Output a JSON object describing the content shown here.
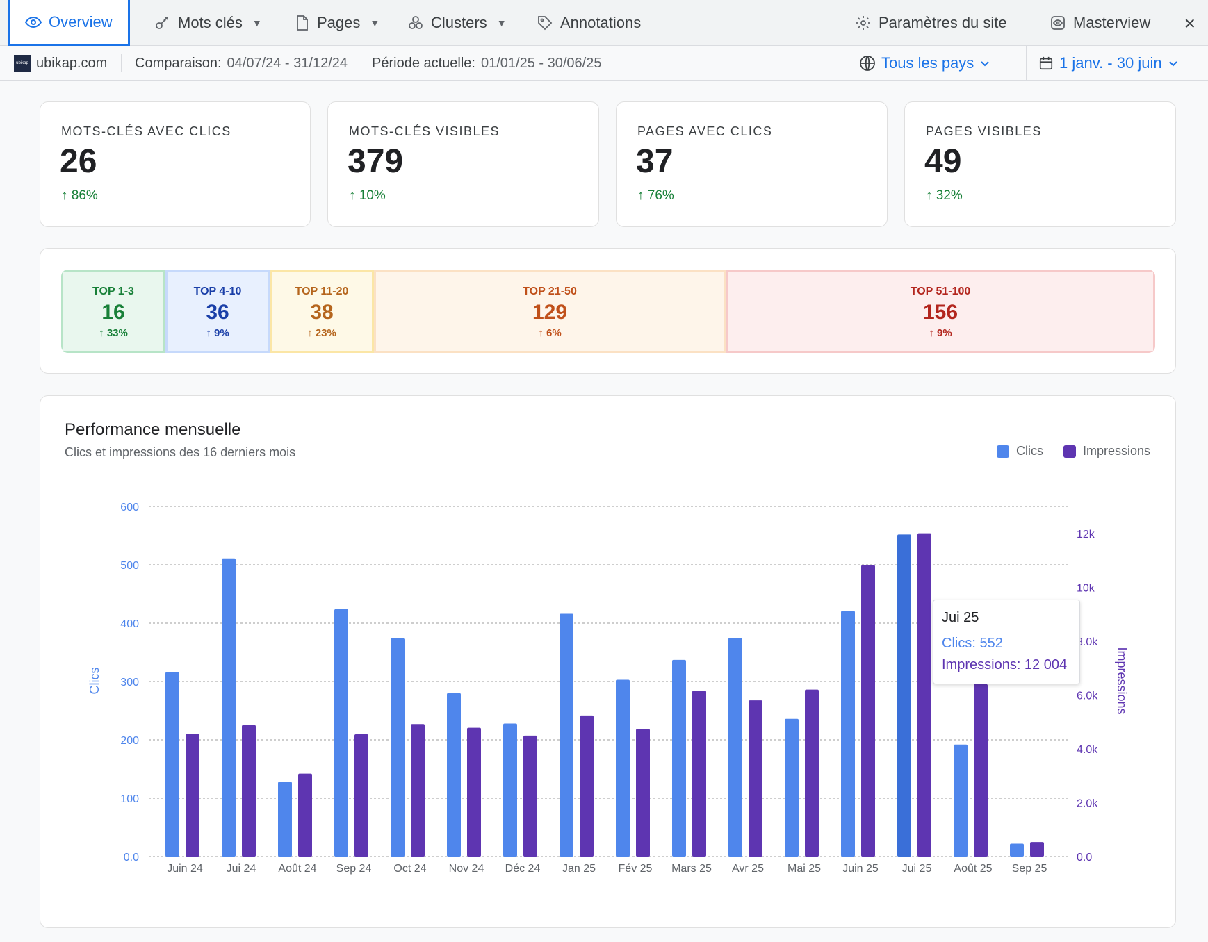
{
  "nav": {
    "tabs": [
      {
        "label": "Overview",
        "active": true,
        "icon": "eye-icon"
      },
      {
        "label": "Mots clés",
        "icon": "key-icon"
      },
      {
        "label": "Pages",
        "icon": "page-icon"
      },
      {
        "label": "Clusters",
        "icon": "clusters-icon"
      },
      {
        "label": "Annotations",
        "icon": "tag-icon"
      }
    ],
    "site_settings": "Paramètres du site",
    "masterview": "Masterview",
    "close": "×"
  },
  "subbar": {
    "logo_text": "ubikap",
    "site": "ubikap.com",
    "comparison_label": "Comparaison:",
    "comparison_value": "04/07/24 - 31/12/24",
    "current_label": "Période actuelle:",
    "current_value": "01/01/25 - 30/06/25",
    "country": "Tous les pays",
    "date_range": "1 janv. - 30 juin"
  },
  "stats": [
    {
      "title": "MOTS-CLÉS AVEC CLICS",
      "value": "26",
      "delta": "86%"
    },
    {
      "title": "MOTS-CLÉS VISIBLES",
      "value": "379",
      "delta": "10%"
    },
    {
      "title": "PAGES AVEC CLICS",
      "value": "37",
      "delta": "76%"
    },
    {
      "title": "PAGES VISIBLES",
      "value": "49",
      "delta": "32%"
    }
  ],
  "ranks": [
    {
      "label": "TOP 1-3",
      "value": "16",
      "delta": "33%"
    },
    {
      "label": "TOP 4-10",
      "value": "36",
      "delta": "9%"
    },
    {
      "label": "TOP 11-20",
      "value": "38",
      "delta": "23%"
    },
    {
      "label": "TOP 21-50",
      "value": "129",
      "delta": "6%"
    },
    {
      "label": "TOP 51-100",
      "value": "156",
      "delta": "9%"
    }
  ],
  "colors": {
    "clics": "#4f86ec",
    "clics_hover": "#3a6fd8",
    "impressions": "#5e35b1",
    "green": "#188038",
    "blue": "#1a73e8"
  },
  "chart_data": {
    "type": "bar",
    "title": "Performance mensuelle",
    "subtitle": "Clics et impressions des 16 derniers mois",
    "categories": [
      "Juin 24",
      "Jui 24",
      "Août 24",
      "Sep 24",
      "Oct 24",
      "Nov 24",
      "Déc 24",
      "Jan 25",
      "Fév 25",
      "Mars 25",
      "Avr 25",
      "Mai 25",
      "Juin 25",
      "Jui 25",
      "Août 25",
      "Sep 25"
    ],
    "series": [
      {
        "name": "Clics",
        "axis": "left",
        "values": [
          316,
          511,
          128,
          424,
          374,
          280,
          228,
          416,
          303,
          337,
          375,
          236,
          421,
          552,
          192,
          22
        ]
      },
      {
        "name": "Impressions",
        "axis": "right",
        "values": [
          4560,
          4880,
          3080,
          4540,
          4920,
          4780,
          4490,
          5240,
          4740,
          6160,
          5800,
          6200,
          10820,
          12004,
          6400,
          540
        ]
      }
    ],
    "ylabel": "Clics",
    "ylabel_right": "Impressions",
    "ylim": [
      0,
      600
    ],
    "ylim_right": [
      0,
      13000
    ],
    "yticks": [
      "0.0",
      "100",
      "200",
      "300",
      "400",
      "500",
      "600"
    ],
    "yticks_right": [
      "0.0",
      "2.0k",
      "4.0k",
      "6.0k",
      "8.0k",
      "10k",
      "12k"
    ],
    "grid": true,
    "legend_position": "top-right",
    "highlight_index": 13
  },
  "tooltip": {
    "title": "Jui 25",
    "clics": "Clics: 552",
    "impressions": "Impressions: 12 004"
  }
}
